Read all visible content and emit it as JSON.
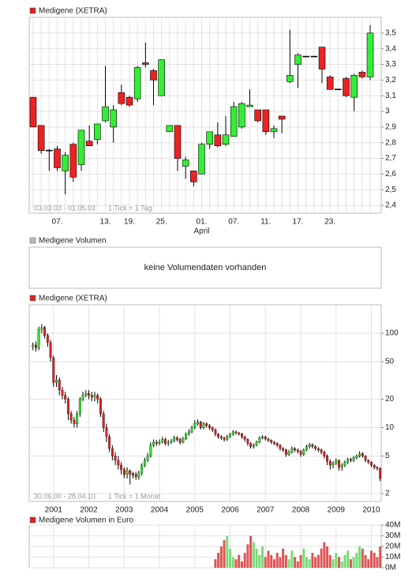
{
  "chart_data": [
    {
      "type": "candlestick",
      "title": "Medigene (XETRA)",
      "categories": [
        null,
        null,
        null,
        "07.",
        null,
        null,
        null,
        null,
        null,
        "13.",
        null,
        null,
        "19.",
        null,
        null,
        null,
        "25.",
        null,
        null,
        null,
        null,
        "01.",
        null,
        null,
        null,
        "07.",
        null,
        null,
        null,
        "11.",
        null,
        null,
        null,
        "17.",
        null,
        null,
        null,
        "23.",
        null,
        null,
        null,
        null,
        null
      ],
      "month_label": "April",
      "open": [
        3.09,
        2.91,
        2.75,
        2.76,
        2.62,
        2.79,
        2.66,
        2.81,
        2.82,
        2.94,
        2.9,
        3.12,
        3.09,
        3.08,
        3.31,
        3.26,
        3.1,
        2.87,
        2.91,
        2.65,
        2.62,
        2.6,
        2.79,
        2.85,
        2.79,
        2.84,
        2.9,
        3.03,
        3.01,
        3.01,
        2.87,
        2.97,
        3.19,
        3.3,
        3.35,
        3.35,
        3.41,
        3.22,
        3.14,
        3.21,
        3.09,
        3.25,
        3.22
      ],
      "high": [
        3.09,
        2.91,
        2.76,
        2.78,
        2.74,
        2.8,
        2.88,
        2.91,
        2.92,
        3.29,
        3.04,
        3.17,
        3.1,
        3.29,
        3.44,
        3.27,
        3.33,
        2.91,
        2.91,
        2.71,
        2.62,
        2.8,
        2.87,
        2.93,
        2.97,
        3.06,
        3.06,
        3.14,
        3.01,
        3.01,
        2.91,
        2.97,
        3.52,
        3.37,
        3.35,
        3.35,
        3.41,
        3.23,
        3.14,
        3.22,
        3.24,
        3.26,
        3.55
      ],
      "low": [
        2.9,
        2.73,
        2.62,
        2.62,
        2.47,
        2.55,
        2.62,
        2.78,
        2.79,
        2.93,
        2.8,
        3.04,
        3.03,
        3.06,
        3.28,
        3.04,
        3.1,
        2.87,
        2.62,
        2.57,
        2.52,
        2.6,
        2.76,
        2.77,
        2.78,
        2.84,
        2.89,
        3.03,
        2.93,
        2.85,
        2.83,
        2.86,
        3.18,
        3.15,
        3.35,
        3.35,
        3.18,
        3.14,
        3.14,
        3.09,
        3.0,
        3.21,
        3.2
      ],
      "close": [
        2.9,
        2.75,
        2.75,
        2.64,
        2.72,
        2.58,
        2.88,
        2.78,
        2.92,
        3.03,
        3.01,
        3.05,
        3.04,
        3.28,
        3.3,
        3.2,
        3.33,
        2.91,
        2.7,
        2.69,
        2.55,
        2.79,
        2.87,
        2.78,
        2.85,
        3.03,
        3.05,
        3.04,
        2.94,
        2.87,
        2.89,
        2.95,
        3.23,
        3.36,
        3.35,
        3.35,
        3.27,
        3.14,
        3.14,
        3.1,
        3.23,
        3.22,
        3.5
      ],
      "ylim": [
        2.35,
        3.6
      ],
      "yticks": [
        {
          "value": 2.4,
          "label": "2,4"
        },
        {
          "value": 2.5,
          "label": "2,5"
        },
        {
          "value": 2.6,
          "label": "2,6"
        },
        {
          "value": 2.7,
          "label": "2,7"
        },
        {
          "value": 2.8,
          "label": "2,8"
        },
        {
          "value": 2.9,
          "label": "2,9"
        },
        3,
        {
          "value": 3.1,
          "label": "3,1"
        },
        {
          "value": 3.2,
          "label": "3,2"
        },
        {
          "value": 3.3,
          "label": "3,3"
        },
        {
          "value": 3.4,
          "label": "3,4"
        },
        {
          "value": 3.5,
          "label": "3,5"
        }
      ],
      "grid": true,
      "legend_color": "#dd2222",
      "up_color": "#33ee33",
      "down_color": "#ee2222",
      "range_note": "03.03.03 - 01.05.03",
      "tick_note": "1 Tick = 1 Tag"
    },
    {
      "type": "empty",
      "title": "Medigene Volumen",
      "message": "keine Volumendaten vorhanden",
      "legend_color": "#bbbbbb"
    },
    {
      "type": "candlestick",
      "title": "Medigene (XETRA)",
      "categories": [
        null,
        null,
        null,
        null,
        null,
        null,
        null,
        "2001",
        null,
        null,
        null,
        null,
        null,
        null,
        null,
        null,
        null,
        null,
        null,
        "2002",
        null,
        null,
        null,
        null,
        null,
        null,
        null,
        null,
        null,
        null,
        null,
        "2003",
        null,
        null,
        null,
        null,
        null,
        null,
        null,
        null,
        null,
        null,
        null,
        "2004",
        null,
        null,
        null,
        null,
        null,
        null,
        null,
        null,
        null,
        null,
        null,
        "2005",
        null,
        null,
        null,
        null,
        null,
        null,
        null,
        null,
        null,
        null,
        null,
        "2006",
        null,
        null,
        null,
        null,
        null,
        null,
        null,
        null,
        null,
        null,
        null,
        "2007",
        null,
        null,
        null,
        null,
        null,
        null,
        null,
        null,
        null,
        null,
        null,
        "2008",
        null,
        null,
        null,
        null,
        null,
        null,
        null,
        null,
        null,
        null,
        null,
        "2009",
        null,
        null,
        null,
        null,
        null,
        null,
        null,
        null,
        null,
        null,
        null,
        "2010",
        null,
        null,
        null
      ],
      "open": [
        72,
        75,
        70,
        110,
        115,
        95,
        80,
        55,
        30,
        32,
        25,
        22,
        20,
        14,
        12,
        11,
        14,
        20,
        22,
        23,
        22,
        21,
        22,
        20,
        14,
        10,
        8,
        6,
        5,
        4.5,
        4,
        3.6,
        3.2,
        3.5,
        3.2,
        3.2,
        3.0,
        3.3,
        4,
        4.5,
        5,
        6.5,
        7,
        6.8,
        7,
        7.5,
        6.8,
        7,
        7.2,
        7.8,
        7.5,
        7,
        7.6,
        8.5,
        9,
        10,
        11,
        11.5,
        10,
        11,
        10.5,
        10,
        9.5,
        8.5,
        8,
        7.8,
        7.5,
        8,
        8.5,
        9,
        8.8,
        8.6,
        8,
        7.5,
        6.8,
        6.3,
        6.5,
        7,
        7.8,
        8,
        7.6,
        7.3,
        7,
        6.8,
        6.5,
        6,
        5.8,
        5.2,
        5.5,
        6,
        5.8,
        5.6,
        5.2,
        5.8,
        6.3,
        6.6,
        6.3,
        6,
        5.8,
        5.5,
        5,
        4.4,
        4,
        4.2,
        4.5,
        3.8,
        4,
        4.3,
        4.6,
        4.5,
        4.8,
        5,
        5.3,
        5,
        4.5,
        4.3,
        4,
        3.8,
        3.7
      ],
      "high": [
        80,
        82,
        118,
        125,
        120,
        100,
        85,
        58,
        36,
        34,
        27,
        24,
        21,
        15,
        13,
        15,
        21,
        24,
        25,
        25,
        24,
        24,
        23,
        21,
        15,
        11,
        8.5,
        6.5,
        5.5,
        5,
        4.3,
        3.8,
        3.8,
        3.6,
        3.4,
        3.4,
        3.5,
        4.2,
        4.8,
        5.4,
        7,
        7.5,
        7.4,
        7.5,
        8,
        7.8,
        7.4,
        7.6,
        8.2,
        8.1,
        7.8,
        8,
        8.9,
        9.6,
        10.5,
        12,
        12.2,
        11.8,
        11.5,
        11.4,
        10.9,
        10.3,
        9.8,
        8.8,
        8.3,
        8,
        8.4,
        8.8,
        9.4,
        9.3,
        9,
        8.8,
        8.2,
        7.7,
        7,
        6.8,
        7.3,
        8.1,
        8.3,
        8.2,
        7.8,
        7.5,
        7.2,
        7,
        6.7,
        6.2,
        6,
        5.8,
        6.3,
        6.2,
        6,
        5.8,
        6,
        6.6,
        6.9,
        6.8,
        6.5,
        6.2,
        6,
        5.7,
        5.2,
        4.6,
        4.4,
        4.7,
        4.6,
        4.2,
        4.5,
        4.8,
        4.8,
        5,
        5.2,
        5.6,
        5.5,
        5.1,
        4.6,
        4.4,
        4.1,
        3.9,
        3.8
      ],
      "low": [
        66,
        64,
        66,
        100,
        88,
        72,
        50,
        27,
        27,
        22,
        20,
        18,
        12,
        11,
        10,
        10,
        13,
        19,
        21,
        20,
        19,
        19,
        18,
        13,
        9,
        7,
        5.5,
        4.5,
        4,
        3.6,
        3.2,
        2.9,
        2.9,
        2.5,
        2.9,
        2.8,
        2.8,
        3.1,
        3.8,
        4.3,
        4.8,
        6.2,
        6.4,
        6.5,
        6.8,
        6.5,
        6.4,
        6.7,
        7,
        7.1,
        6.6,
        6.8,
        7.4,
        8.2,
        8.7,
        9.6,
        10.5,
        9.5,
        9.6,
        10,
        9.5,
        9,
        8.1,
        7.6,
        7.4,
        7.1,
        7.2,
        7.8,
        8.2,
        8.4,
        8.2,
        7.6,
        7.1,
        6.4,
        6,
        6,
        6.3,
        6.8,
        7.5,
        7.3,
        7,
        6.7,
        6.5,
        6.2,
        5.7,
        5.5,
        4.9,
        5,
        5.3,
        5.5,
        5.3,
        4.9,
        5,
        5.6,
        6,
        6,
        5.7,
        5.5,
        5.2,
        4.7,
        4,
        3.6,
        3.7,
        4,
        3.5,
        3.5,
        3.8,
        4.1,
        4.3,
        4.3,
        4.6,
        4.8,
        4.8,
        4.3,
        4.1,
        3.8,
        3.6,
        3.5,
        2.7
      ],
      "close": [
        75,
        70,
        110,
        115,
        95,
        80,
        55,
        30,
        32,
        25,
        22,
        20,
        14,
        12,
        11,
        14,
        20,
        22,
        23,
        22,
        21,
        22,
        20,
        14,
        10,
        8,
        6,
        5,
        4.5,
        4,
        3.6,
        3.2,
        3.5,
        3.2,
        3.2,
        3.0,
        3.3,
        4,
        4.5,
        5,
        6.5,
        7,
        6.8,
        7,
        7.5,
        6.8,
        7,
        7.2,
        7.8,
        7.5,
        7,
        7.6,
        8.5,
        9,
        10,
        11,
        11.5,
        10,
        11,
        10.5,
        10,
        9.5,
        8.5,
        8,
        7.8,
        7.5,
        8,
        8.5,
        9,
        8.8,
        8.6,
        8,
        7.5,
        6.8,
        6.3,
        6.5,
        7,
        7.8,
        8,
        7.6,
        7.3,
        7,
        6.8,
        6.5,
        6,
        5.8,
        5.2,
        5.5,
        6,
        5.8,
        5.6,
        5.2,
        5.8,
        6.3,
        6.6,
        6.3,
        6,
        5.8,
        5.5,
        5,
        4.4,
        4,
        4.2,
        4.5,
        3.8,
        4,
        4.3,
        4.6,
        4.5,
        4.8,
        5,
        5.3,
        5,
        4.5,
        4.3,
        4,
        3.8,
        3.7,
        2.9
      ],
      "ylim": [
        1.65,
        200
      ],
      "log": true,
      "yticks": [
        2,
        5,
        10,
        20,
        50,
        100
      ],
      "grid": true,
      "legend_color": "#dd2222",
      "up_color": "#33dd33",
      "down_color": "#dd2222",
      "range_note": "30.06.00 - 28.04.10",
      "tick_note": "1 Tick = 1 Monat"
    },
    {
      "type": "bar",
      "title": "Medigene Volumen in Euro",
      "values": [
        null,
        null,
        null,
        null,
        null,
        null,
        null,
        null,
        null,
        null,
        null,
        null,
        null,
        null,
        null,
        null,
        null,
        null,
        null,
        null,
        null,
        null,
        null,
        null,
        null,
        null,
        null,
        null,
        null,
        null,
        null,
        null,
        null,
        null,
        null,
        null,
        null,
        null,
        null,
        null,
        null,
        null,
        null,
        null,
        null,
        null,
        null,
        null,
        null,
        null,
        null,
        null,
        null,
        null,
        null,
        null,
        null,
        null,
        null,
        null,
        null,
        null,
        8,
        14,
        20,
        26,
        30,
        18,
        10,
        8,
        12,
        6,
        14,
        22,
        30,
        24,
        18,
        12,
        20,
        10,
        16,
        12,
        8,
        14,
        10,
        18,
        12,
        8,
        16,
        10,
        6,
        12,
        18,
        10,
        8,
        14,
        10,
        12,
        18,
        24,
        20,
        12,
        8,
        14,
        10,
        6,
        12,
        16,
        8,
        10,
        14,
        20,
        18,
        12,
        8,
        16,
        14,
        10,
        20
      ],
      "ylim": [
        0,
        40
      ],
      "yticks": [
        {
          "value": 0,
          "label": "0M"
        },
        {
          "value": 10,
          "label": "10M"
        },
        {
          "value": 20,
          "label": "20M"
        },
        {
          "value": 30,
          "label": "30M"
        },
        {
          "value": 40,
          "label": "40M"
        }
      ],
      "grid": true,
      "legend_color": "#dd2222",
      "up_color": "#77dd77",
      "down_color": "#dd5555"
    }
  ]
}
